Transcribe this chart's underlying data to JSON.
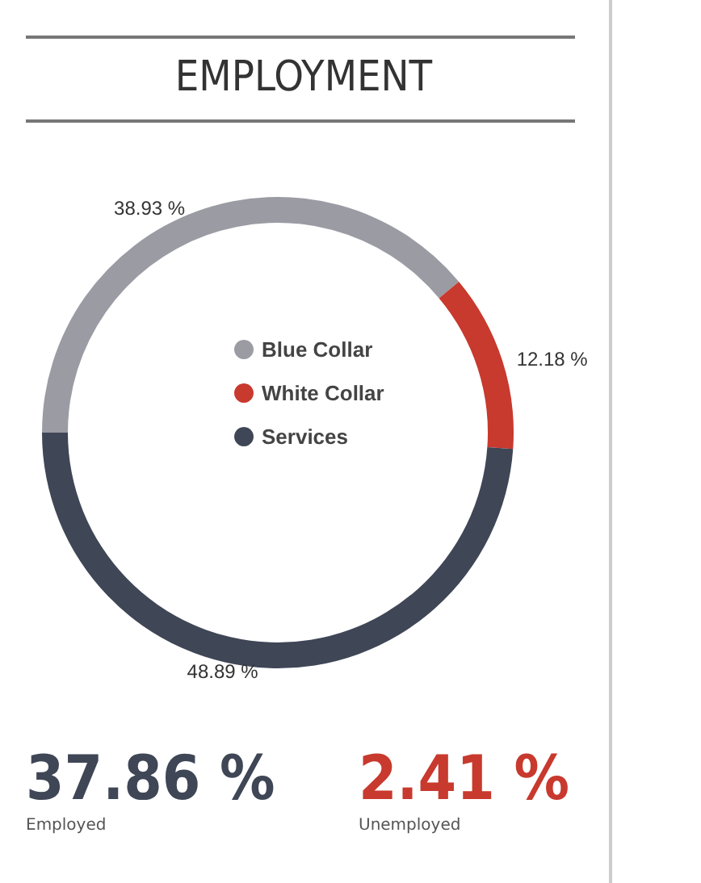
{
  "chart_data": {
    "type": "donut",
    "title": "EMPLOYMENT",
    "categories": [
      "Blue Collar",
      "White Collar",
      "Services"
    ],
    "values": [
      38.93,
      12.18,
      48.89
    ],
    "value_labels": [
      "38.93 %",
      "12.18 %",
      "48.89 %"
    ],
    "colors": [
      "#9b9ba4",
      "#c8392e",
      "#3f4656"
    ],
    "legend": "center",
    "annotations": [
      "37.86 %",
      "Employed",
      "2.41 %",
      "Unemployed"
    ]
  }
}
